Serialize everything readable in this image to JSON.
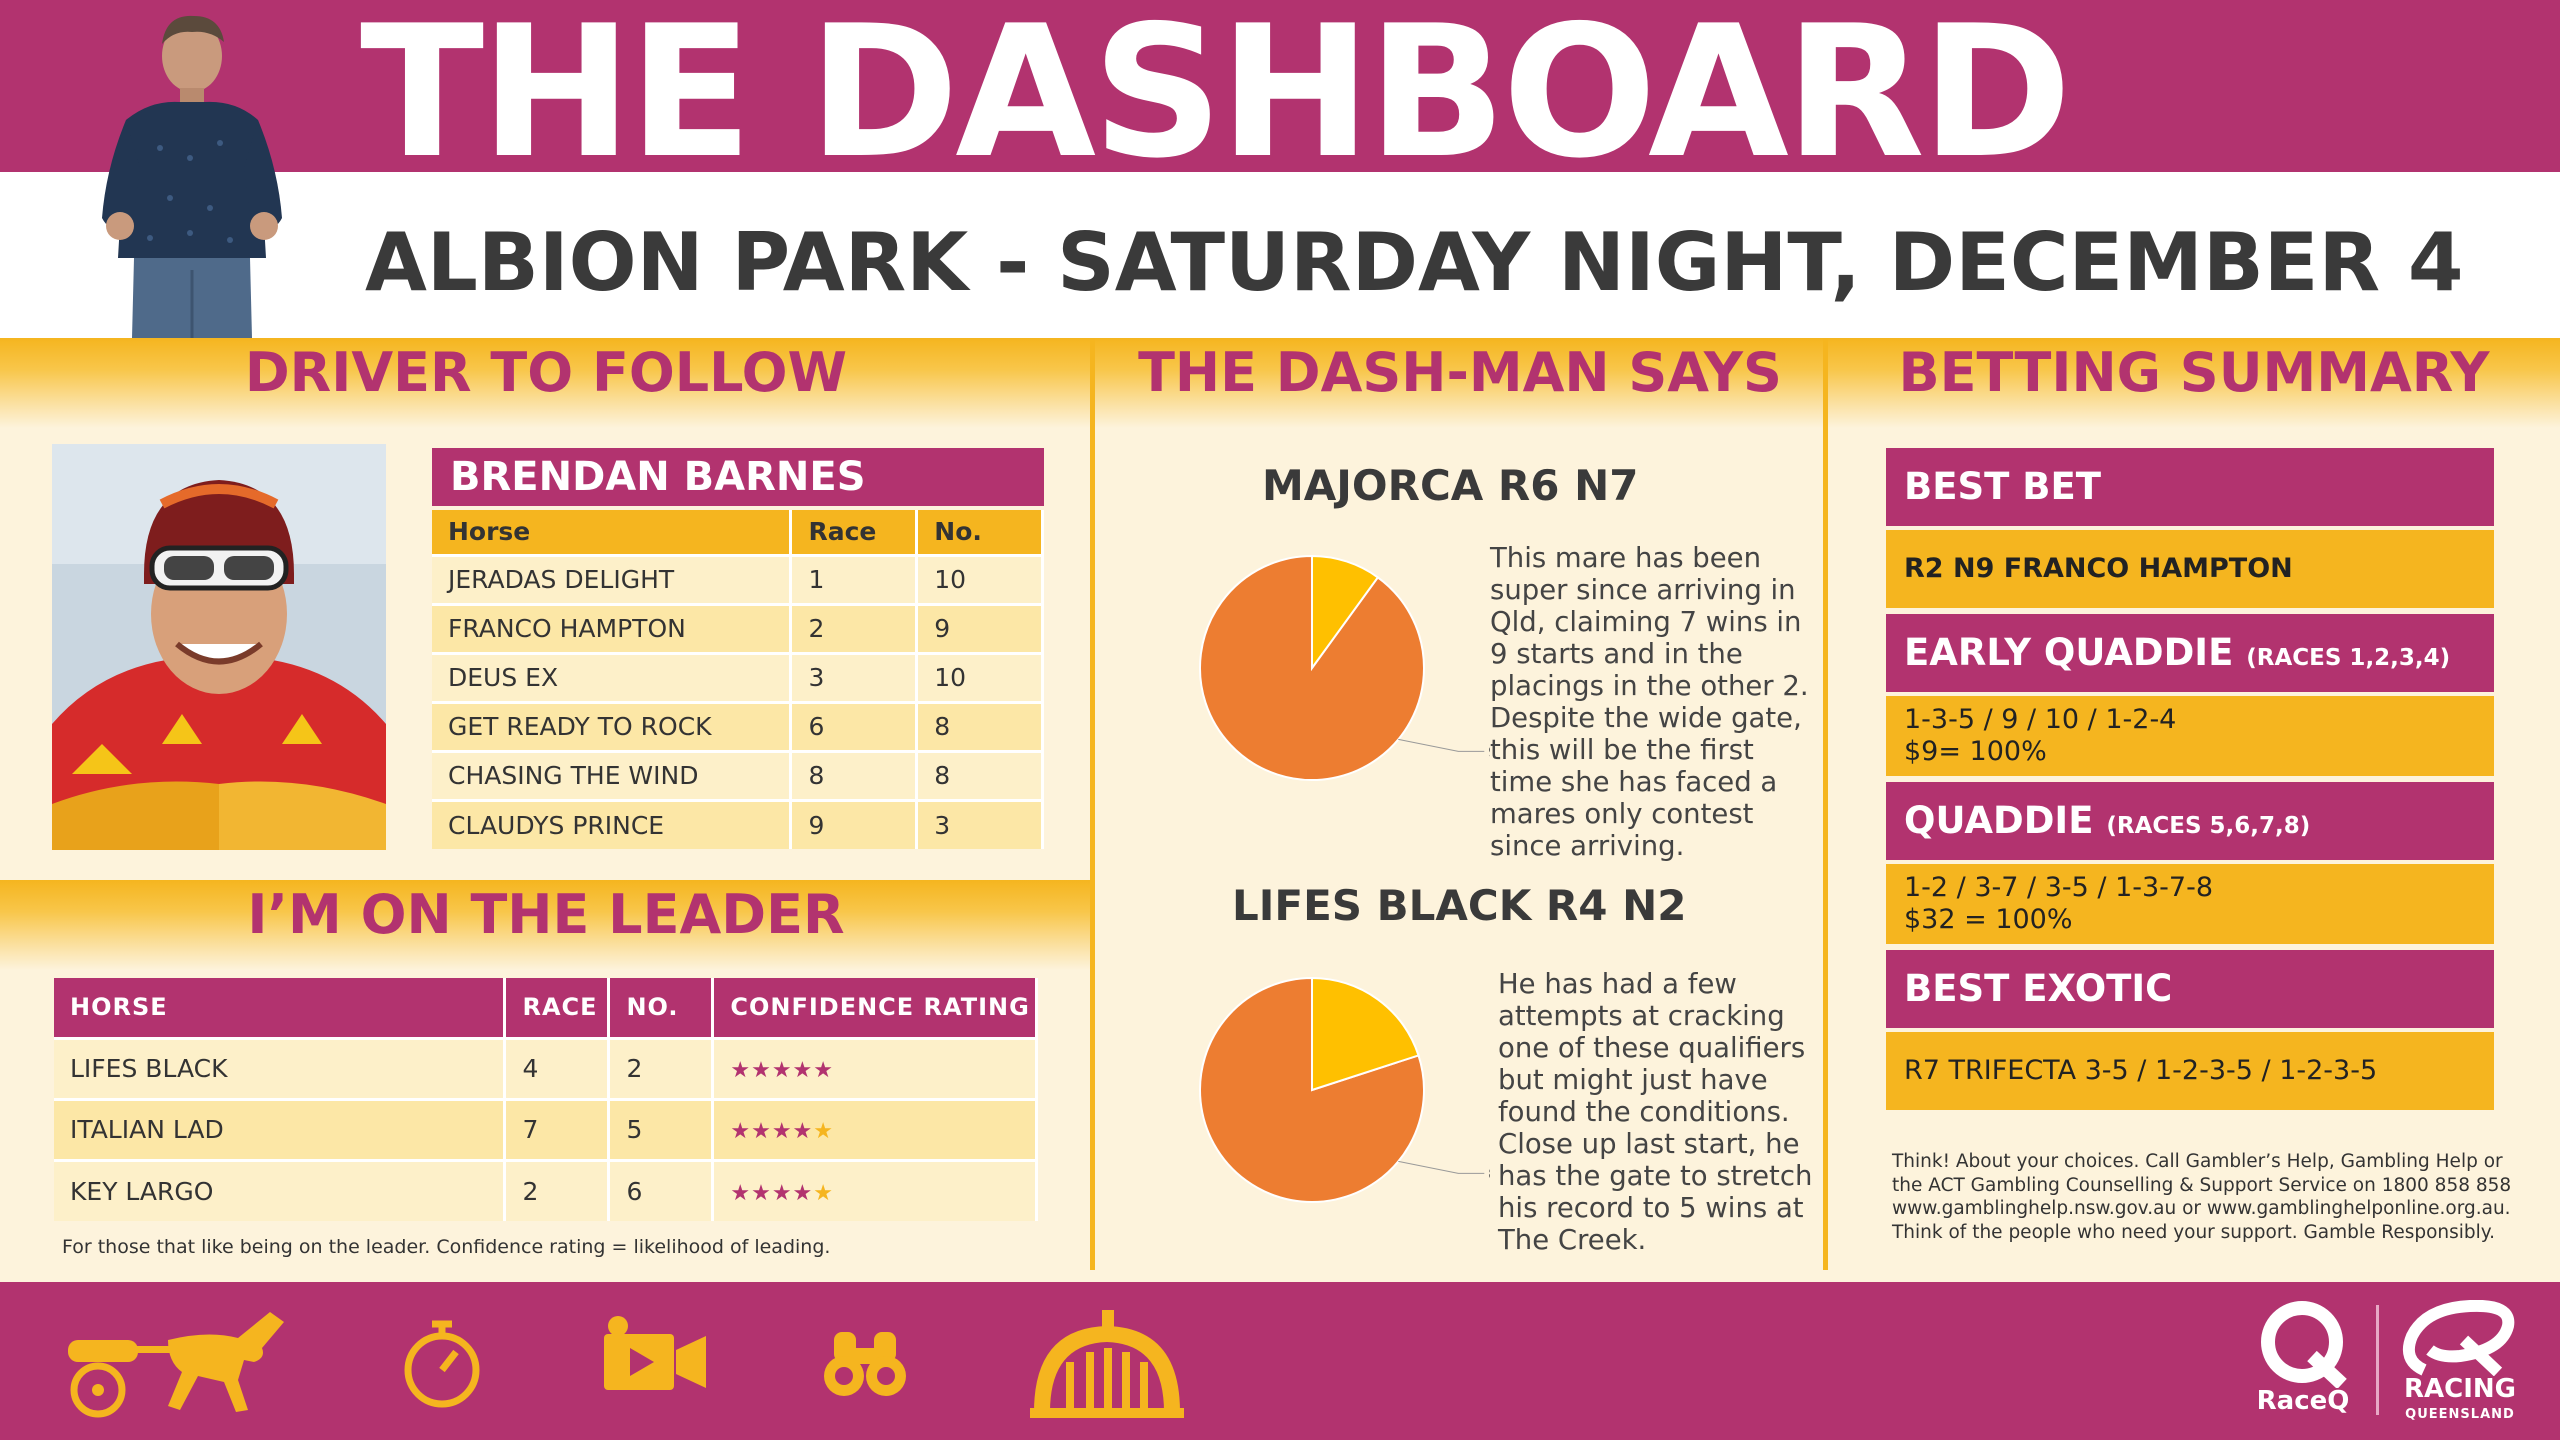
{
  "header": {
    "title": "THE DASHBOARD",
    "subtitle": "ALBION PARK - SATURDAY NIGHT, DECEMBER 4"
  },
  "sections": {
    "driver": "DRIVER TO FOLLOW",
    "dashman": "THE DASH-MAN SAYS",
    "betting": "BETTING SUMMARY",
    "leader": "I’M ON THE LEADER"
  },
  "driver": {
    "name": "BRENDAN BARNES",
    "columns": [
      "Horse",
      "Race",
      "No."
    ],
    "rows": [
      {
        "horse": "JERADAS DELIGHT",
        "race": "1",
        "no": "10"
      },
      {
        "horse": "FRANCO HAMPTON",
        "race": "2",
        "no": "9"
      },
      {
        "horse": "DEUS EX",
        "race": "3",
        "no": "10"
      },
      {
        "horse": "GET READY TO ROCK",
        "race": "6",
        "no": "8"
      },
      {
        "horse": "CHASING THE WIND",
        "race": "8",
        "no": "8"
      },
      {
        "horse": "CLAUDYS PRINCE",
        "race": "9",
        "no": "3"
      }
    ]
  },
  "leader": {
    "columns": [
      "HORSE",
      "RACE",
      "NO.",
      "CONFIDENCE RATING"
    ],
    "rows": [
      {
        "horse": "LIFES BLACK",
        "race": "4",
        "no": "2",
        "rating": 5
      },
      {
        "horse": "ITALIAN LAD",
        "race": "7",
        "no": "5",
        "rating": 4
      },
      {
        "horse": "KEY LARGO",
        "race": "2",
        "no": "6",
        "rating": 4
      }
    ],
    "max_rating": 5,
    "note": "For those that like being on the leader.  Confidence rating = likelihood of leading."
  },
  "picks": [
    {
      "title": "MAJORCA R6 N7",
      "confidence_pct": 90,
      "pie_label": "90%",
      "text": "This mare has been super since arriving in Qld, claiming 7 wins in 9 starts and in the placings in the other 2. Despite the wide gate, this will be the first time she has faced a mares only contest since arriving."
    },
    {
      "title": "LIFES BLACK R4 N2",
      "confidence_pct": 80,
      "pie_label": "80%",
      "text": "He has had a few attempts at cracking one of these qualifiers but might just have found the conditions. Close up last start, he has the gate to stretch his record to 5 wins at The Creek."
    }
  ],
  "betting": {
    "best_bet": {
      "heading": "BEST BET",
      "line1": "R2 N9 FRANCO HAMPTON"
    },
    "early_quaddie": {
      "heading": "EARLY QUADDIE",
      "sub": "(RACES 1,2,3,4)",
      "line1": "1-3-5 / 9 / 10 / 1-2-4",
      "line2": "$9= 100%"
    },
    "quaddie": {
      "heading": "QUADDIE",
      "sub": "(RACES 5,6,7,8)",
      "line1": "1-2 / 3-7 / 3-5 / 1-3-7-8",
      "line2": "$32 = 100%"
    },
    "best_exotic": {
      "heading": "BEST EXOTIC",
      "line1": "R7 TRIFECTA 3-5 / 1-2-3-5 / 1-2-3-5"
    }
  },
  "disclaimer": "Think! About your choices. Call Gambler’s Help, Gambling Help or the ACT Gambling Counselling & Support Service on 1800 858 858 www.gamblinghelp.nsw.gov.au or www.gamblinghelponline.org.au. Think of the people who need your support. Gamble Responsibly.",
  "footer": {
    "icons": [
      "harness-racing-icon",
      "stopwatch-icon",
      "video-camera-icon",
      "binoculars-icon",
      "racecourse-gate-icon"
    ],
    "logos": {
      "raceq": "RaceQ",
      "rq_main": "RACING",
      "rq_sub": "QUEENSLAND"
    }
  },
  "colors": {
    "magenta": "#b2336f",
    "gold": "#f5b51f",
    "cream": "#fdf3dc",
    "pie_main": "#ed7d31",
    "pie_rest": "#ffc000"
  }
}
